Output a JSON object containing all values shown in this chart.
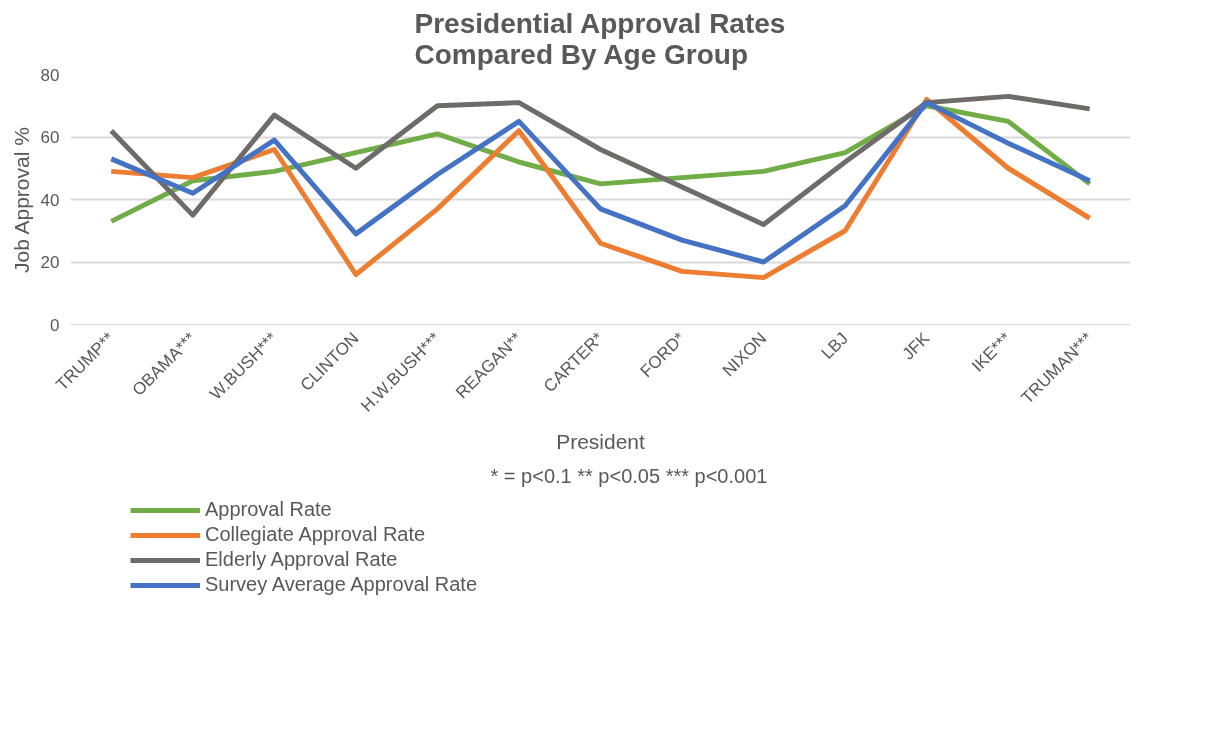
{
  "chart_data": {
    "type": "line",
    "title": "Presidential Approval Rates\nCompared By Age Group",
    "xlabel": "President",
    "ylabel": "Job Approval %",
    "categories": [
      "TRUMP**",
      "OBAMA***",
      "W.BUSH***",
      "CLINTON",
      "H.W.BUSH***",
      "REAGAN**",
      "CARTER*",
      "FORD*",
      "NIXON",
      "LBJ",
      "JFK",
      "IKE***",
      "TRUMAN***"
    ],
    "series": [
      {
        "name": "Approval Rate",
        "color": "#70ad47",
        "values": [
          33,
          46,
          49,
          55,
          61,
          52,
          45,
          47,
          49,
          55,
          70,
          65,
          45
        ]
      },
      {
        "name": "Collegiate Approval Rate",
        "color": "#ed7d31",
        "values": [
          49,
          47,
          56,
          16,
          37,
          62,
          26,
          17,
          15,
          30,
          72,
          50,
          34
        ]
      },
      {
        "name": "Elderly Approval Rate",
        "color": "#6f6b6b",
        "values": [
          62,
          35,
          67,
          50,
          70,
          71,
          56,
          44,
          32,
          52,
          71,
          73,
          69
        ]
      },
      {
        "name": "Survey Average Approval Rate",
        "color": "#4472c4",
        "values": [
          53,
          42,
          59,
          29,
          48,
          65,
          37,
          27,
          20,
          38,
          71,
          58,
          46
        ]
      }
    ],
    "ylim": [
      0,
      80
    ],
    "yticks": [
      0,
      20,
      40,
      60,
      80
    ],
    "grid": "y",
    "legend": "bottom",
    "marker": "none",
    "line_style": "solid",
    "annotations": [
      "* = p<0.1   ** p<0.05   *** p<0.001"
    ]
  }
}
